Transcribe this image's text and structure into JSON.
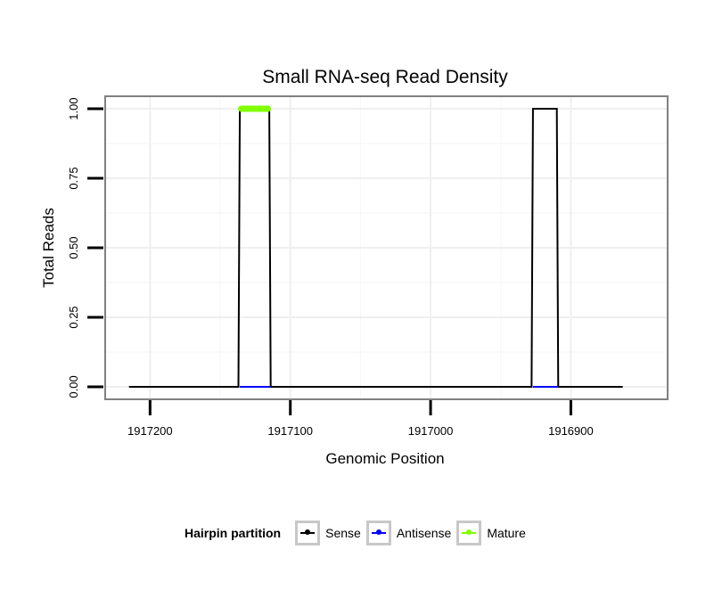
{
  "chart_data": {
    "type": "line",
    "title": "Small RNA-seq Read Density",
    "xlabel": "Genomic Position",
    "ylabel": "Total Reads",
    "x_reversed": true,
    "xlim": [
      1917232,
      1916831
    ],
    "ylim": [
      -0.045,
      1.045
    ],
    "x_ticks": [
      1917200,
      1917100,
      1917000,
      1916900
    ],
    "x_tick_labels": [
      "1917200",
      "1917100",
      "1917000",
      "1916900"
    ],
    "y_ticks": [
      0,
      0.25,
      0.5,
      0.75,
      1.0
    ],
    "y_tick_labels": [
      "0.00",
      "0.25",
      "0.50",
      "0.75",
      "1.00"
    ],
    "grid": true,
    "legend_position": "bottom",
    "series": [
      {
        "name": "Sense",
        "color": "#000000",
        "x": [
          1917215,
          1917137,
          1917136,
          1917115,
          1917114,
          1916928,
          1916927,
          1916910,
          1916909,
          1916863
        ],
        "y": [
          0,
          0,
          1,
          1,
          0,
          0,
          1,
          1,
          0,
          0
        ]
      },
      {
        "name": "Antisense",
        "color": "#0000ff",
        "x": [
          1917136,
          1917114,
          1916927,
          1916909
        ],
        "y": [
          0,
          0,
          0,
          0
        ],
        "segments": true
      },
      {
        "name": "Mature",
        "color": "#7fff00",
        "x": [
          1917135,
          1917116
        ],
        "y": [
          1,
          1
        ]
      }
    ]
  },
  "legend": {
    "title": "Hairpin partition",
    "items": [
      {
        "label": "Sense",
        "color": "#000000"
      },
      {
        "label": "Antisense",
        "color": "#0000ff"
      },
      {
        "label": "Mature",
        "color": "#7fff00"
      }
    ]
  }
}
